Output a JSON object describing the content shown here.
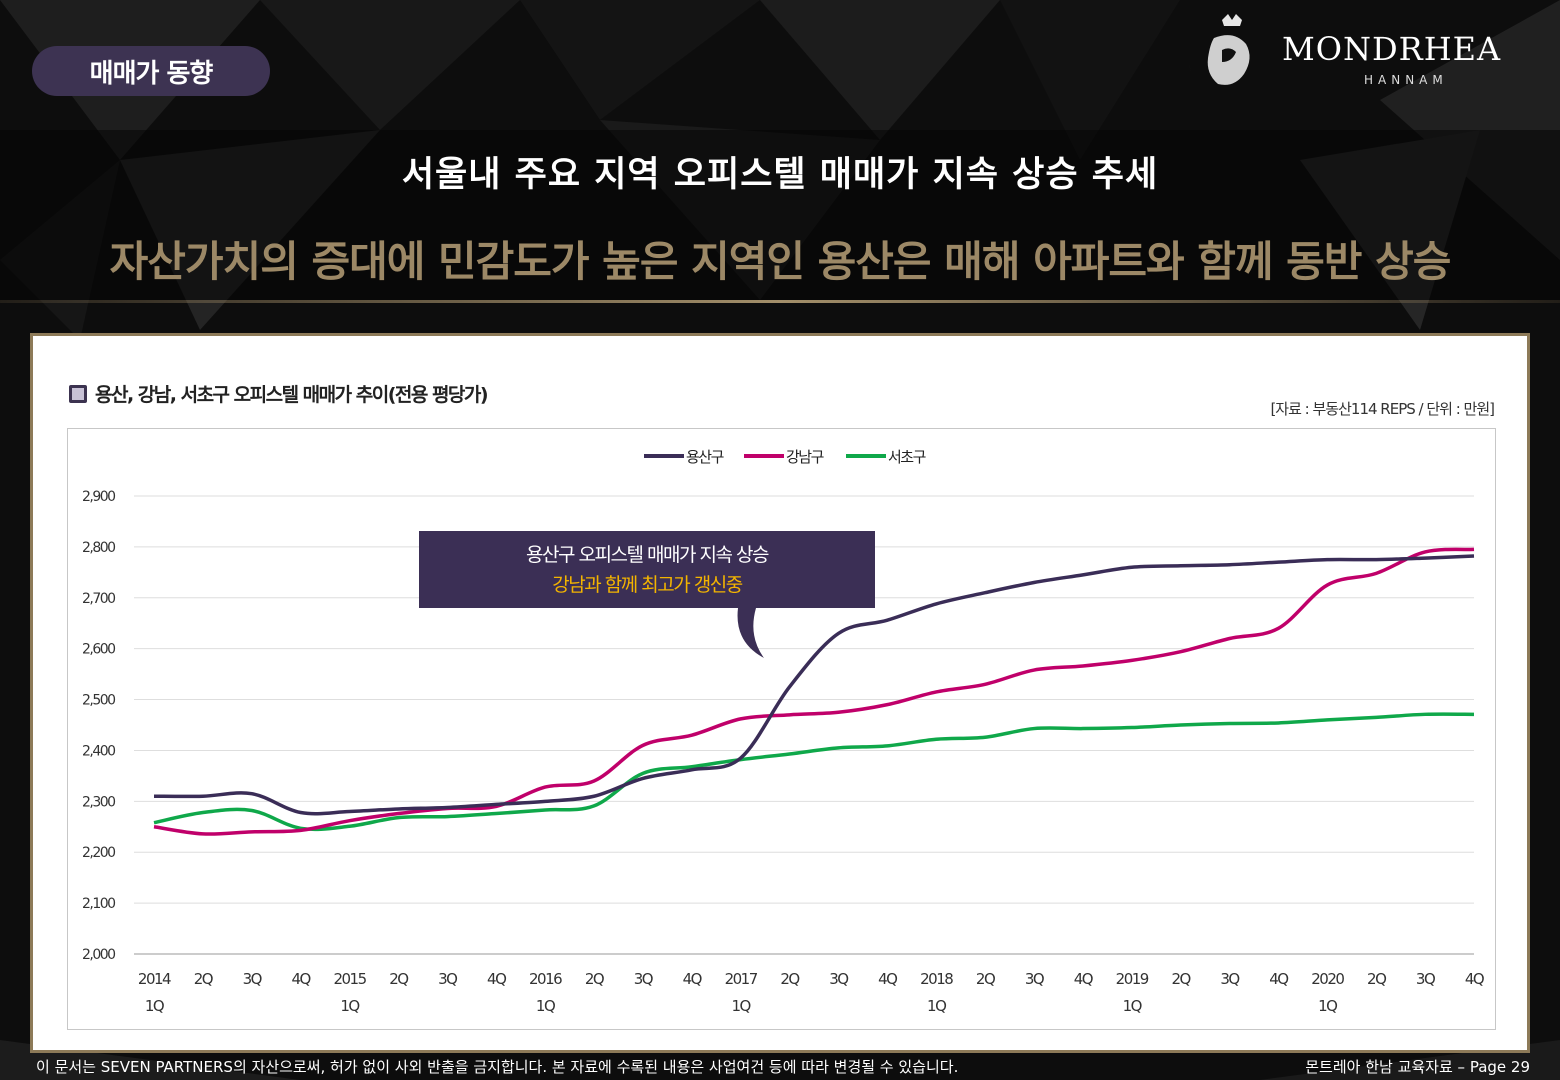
{
  "header": {
    "tag": "매매가 동향",
    "logo_name": "MONDRHEA",
    "logo_sub": "HANNAM",
    "title": "서울내 주요 지역 오피스텔 매매가 지속 상승 추세",
    "subtitle": "자산가치의 증대에 민감도가 높은 지역인 용산은 매해 아파트와 함께 동반 상승"
  },
  "panel": {
    "heading": "용산, 강남, 서초구 오피스텔 매매가 추이(전용 평당가)",
    "source": "[자료 : 부동산114 REPS / 단위 : 만원]"
  },
  "callout": {
    "line1": "용산구 오피스텔 매매가 지속 상승",
    "line2": "강남과 함께 최고가 갱신중"
  },
  "footer": {
    "left": "이 문서는 SEVEN PARTNERS의 자산으로써, 허가 없이 사외 반출을 금지합니다. 본 자료에 수록된 내용은 사업여건 등에 따라 변경될 수 있습니다.",
    "right": "몬트레아 한남 교육자료  – Page 29"
  },
  "chart_data": {
    "type": "line",
    "title": "",
    "xlabel": "",
    "ylabel": "",
    "ylim": [
      2000,
      2900
    ],
    "yticks": [
      "2,000",
      "2,100",
      "2,200",
      "2,300",
      "2,400",
      "2,500",
      "2,600",
      "2,700",
      "2,800",
      "2,900"
    ],
    "grid": true,
    "legend": "top-center",
    "categories": [
      "2014 1Q",
      "2Q",
      "3Q",
      "4Q",
      "2015 1Q",
      "2Q",
      "3Q",
      "4Q",
      "2016 1Q",
      "2Q",
      "3Q",
      "4Q",
      "2017 1Q",
      "2Q",
      "3Q",
      "4Q",
      "2018 1Q",
      "2Q",
      "3Q",
      "4Q",
      "2019 1Q",
      "2Q",
      "3Q",
      "4Q",
      "2020 1Q",
      "2Q",
      "3Q",
      "4Q"
    ],
    "series": [
      {
        "name": "용산구",
        "color": "#3a2d57",
        "values": [
          2310,
          2310,
          2315,
          2278,
          2280,
          2285,
          2288,
          2294,
          2300,
          2310,
          2345,
          2362,
          2385,
          2525,
          2630,
          2656,
          2688,
          2710,
          2730,
          2745,
          2760,
          2763,
          2765,
          2770,
          2775,
          2775,
          2778,
          2782
        ]
      },
      {
        "name": "강남구",
        "color": "#c0006a",
        "values": [
          2250,
          2236,
          2240,
          2243,
          2262,
          2276,
          2286,
          2290,
          2328,
          2340,
          2410,
          2430,
          2462,
          2470,
          2475,
          2490,
          2515,
          2530,
          2558,
          2566,
          2577,
          2594,
          2620,
          2640,
          2725,
          2748,
          2790,
          2795
        ]
      },
      {
        "name": "서초구",
        "color": "#0fa84a",
        "values": [
          2258,
          2278,
          2282,
          2247,
          2251,
          2268,
          2270,
          2276,
          2283,
          2291,
          2355,
          2368,
          2382,
          2393,
          2405,
          2409,
          2422,
          2426,
          2443,
          2443,
          2445,
          2450,
          2453,
          2454,
          2460,
          2465,
          2471,
          2471
        ]
      }
    ]
  }
}
